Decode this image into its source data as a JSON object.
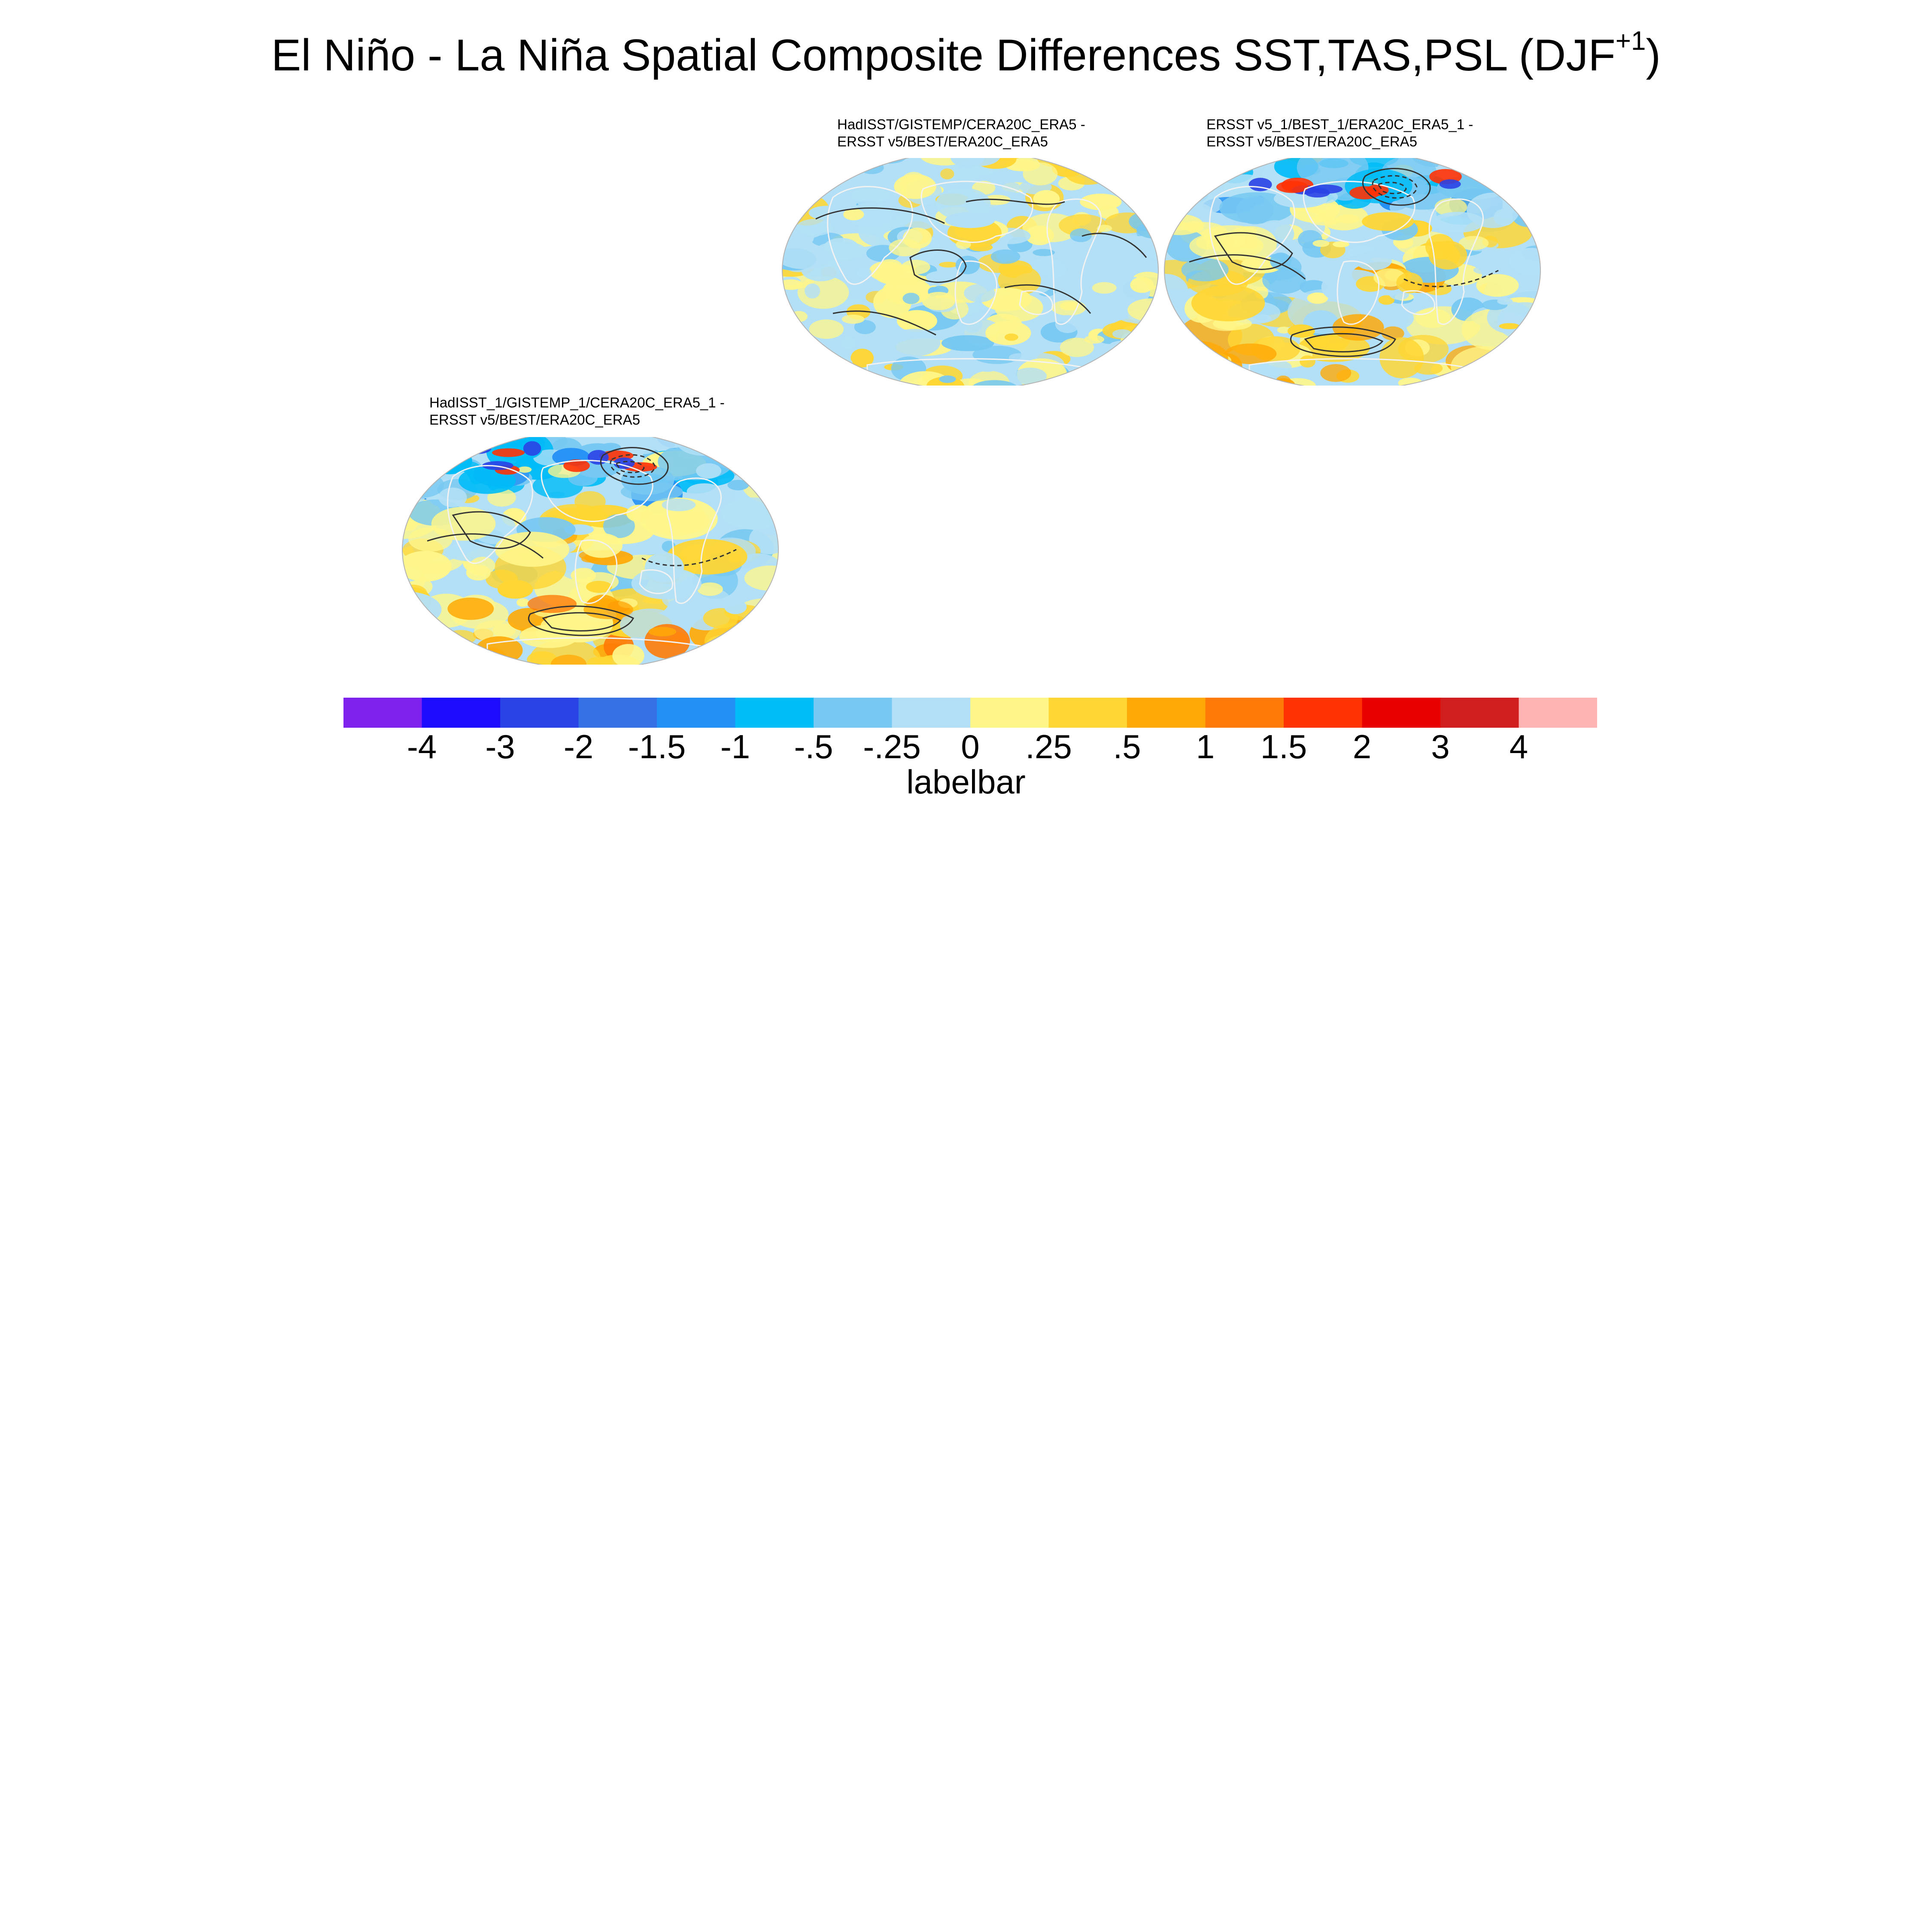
{
  "figure": {
    "title_main": "El Niño - La Niña Spatial Composite Differences SST,TAS,PSL (DJF",
    "title_sup": "+1",
    "title_close": ")"
  },
  "panels": [
    {
      "title_line1": "HadISST/GISTEMP/CERA20C_ERA5 -",
      "title_line2": "ERSST v5/BEST/ERA20C_ERA5",
      "projection": "robinson-style ellipse",
      "pattern": "weak mixed differences"
    },
    {
      "title_line1": "ERSST v5_1/BEST_1/ERA20C_ERA5_1 -",
      "title_line2": "ERSST v5/BEST/ERA20C_ERA5",
      "projection": "robinson-style ellipse",
      "pattern": "cool northern high latitudes, warm southern ocean"
    },
    {
      "title_line1": "HadISST_1/GISTEMP_1/CERA20C_ERA5_1 -",
      "title_line2": "ERSST v5/BEST/ERA20C_ERA5",
      "projection": "robinson-style ellipse",
      "pattern": "cool northern high latitudes, warm southern ocean"
    }
  ],
  "labelbar": {
    "title": "labelbar",
    "tick_labels": [
      "-4",
      "-3",
      "-2",
      "-1.5",
      "-1",
      "-.5",
      "-.25",
      "0",
      ".25",
      ".5",
      "1",
      "1.5",
      "2",
      "3",
      "4"
    ],
    "colors": [
      "#7f22ee",
      "#1e0cff",
      "#2a43e6",
      "#3672e6",
      "#2390f5",
      "#00bcf7",
      "#77c8f2",
      "#b3e0f6",
      "#fff68a",
      "#ffd633",
      "#ffa906",
      "#ff7a06",
      "#ff3204",
      "#e80000",
      "#d11f1f",
      "#ffb4b4"
    ]
  },
  "colors": {
    "land_outline": "#f2f2f2",
    "contour_line": "#333333",
    "map_edge": "#b3b3b3"
  }
}
